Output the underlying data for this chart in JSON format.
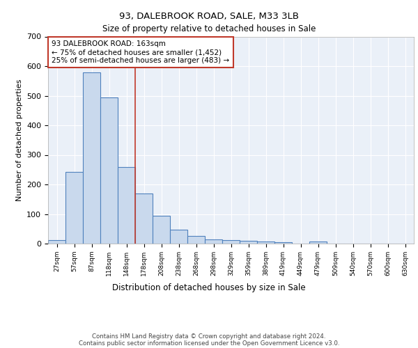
{
  "title_line1": "93, DALEBROOK ROAD, SALE, M33 3LB",
  "title_line2": "Size of property relative to detached houses in Sale",
  "xlabel": "Distribution of detached houses by size in Sale",
  "ylabel": "Number of detached properties",
  "bar_labels": [
    "27sqm",
    "57sqm",
    "87sqm",
    "118sqm",
    "148sqm",
    "178sqm",
    "208sqm",
    "238sqm",
    "268sqm",
    "298sqm",
    "329sqm",
    "359sqm",
    "389sqm",
    "419sqm",
    "449sqm",
    "479sqm",
    "509sqm",
    "540sqm",
    "570sqm",
    "600sqm",
    "630sqm"
  ],
  "bar_values": [
    12,
    242,
    580,
    493,
    260,
    170,
    93,
    48,
    25,
    15,
    12,
    10,
    7,
    5,
    0,
    8,
    0,
    0,
    0,
    0,
    0
  ],
  "bar_color": "#c9d9ed",
  "bar_edge_color": "#4f81bd",
  "ylim": [
    0,
    700
  ],
  "yticks": [
    0,
    100,
    200,
    300,
    400,
    500,
    600,
    700
  ],
  "vline_x": 4.5,
  "vline_color": "#c0392b",
  "annotation_text": "93 DALEBROOK ROAD: 163sqm\n← 75% of detached houses are smaller (1,452)\n25% of semi-detached houses are larger (483) →",
  "annotation_box_color": "white",
  "annotation_box_edge_color": "#c0392b",
  "footnote_line1": "Contains HM Land Registry data © Crown copyright and database right 2024.",
  "footnote_line2": "Contains public sector information licensed under the Open Government Licence v3.0.",
  "bg_color": "#eaf0f8",
  "grid_color": "white"
}
